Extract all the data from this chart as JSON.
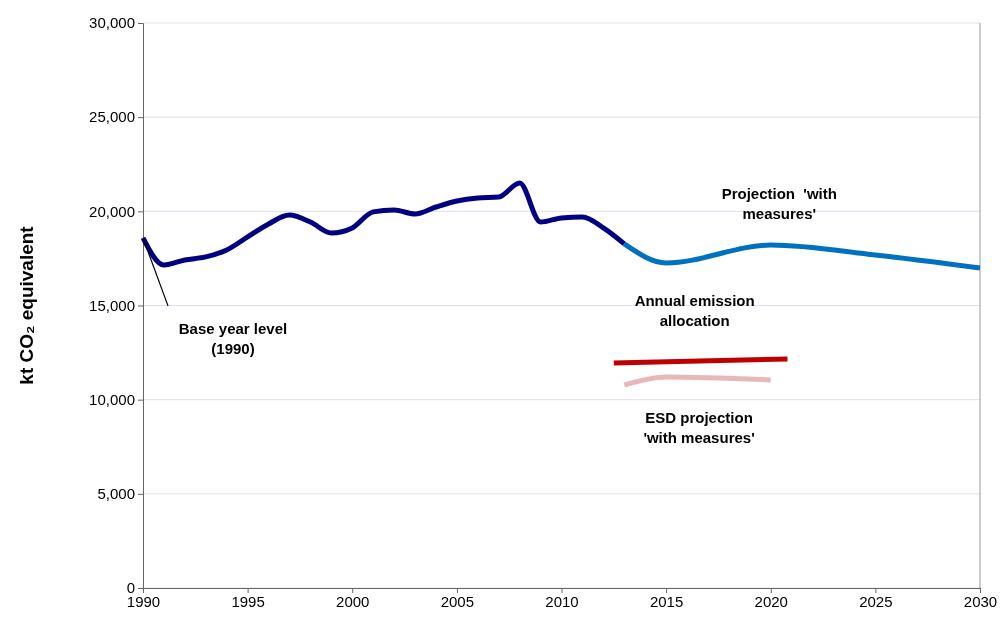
{
  "chart_data": {
    "type": "line",
    "ylabel": "kt CO₂ equivalent",
    "xlim": [
      1990,
      2030
    ],
    "xticks": [
      1990,
      1995,
      2000,
      2005,
      2010,
      2015,
      2020,
      2025,
      2030
    ],
    "ylim": [
      0,
      30000
    ],
    "yticks": [
      {
        "value": 0,
        "label": "0"
      },
      {
        "value": 5000,
        "label": "5,000"
      },
      {
        "value": 10000,
        "label": "10,000"
      },
      {
        "value": 15000,
        "label": "15,000"
      },
      {
        "value": 20000,
        "label": "20,000"
      },
      {
        "value": 25000,
        "label": "25,000"
      },
      {
        "value": 30000,
        "label": "30,000"
      }
    ],
    "grid": "y",
    "marker": "none",
    "line_style": "solid",
    "series": [
      {
        "color": "#000080",
        "x": [
          1990,
          1991,
          1992,
          1993,
          1994,
          1995,
          1996,
          1997,
          1998,
          1999,
          2000,
          2001,
          2002,
          2003,
          2004,
          2005,
          2006,
          2007,
          2008,
          2009,
          2010,
          2011,
          2012,
          2013
        ],
        "values": [
          18590,
          17150,
          17420,
          17580,
          17950,
          18640,
          19330,
          19800,
          19430,
          18850,
          19120,
          19970,
          20070,
          19860,
          20230,
          20550,
          20710,
          20760,
          21500,
          19430,
          19650,
          19700,
          19120,
          18270
        ]
      },
      {
        "name": "Projection  'with measures'",
        "color": "#0070c0",
        "x": [
          2013,
          2015,
          2020,
          2025,
          2030
        ],
        "values": [
          18270,
          17260,
          18210,
          17680,
          16990
        ]
      },
      {
        "name": "Annual emission allocation",
        "color": "#c00000",
        "x": [
          2012.5,
          2020.8
        ],
        "values": [
          11950,
          12160
        ]
      },
      {
        "name": "ESD projection 'with measures'",
        "color": "#e6b8b8",
        "x": [
          2013,
          2015,
          2020
        ],
        "values": [
          10780,
          11200,
          11050
        ]
      }
    ],
    "annotations": [
      {
        "text": "Base year level (1990)",
        "x": 1990,
        "y": 18590
      }
    ]
  }
}
